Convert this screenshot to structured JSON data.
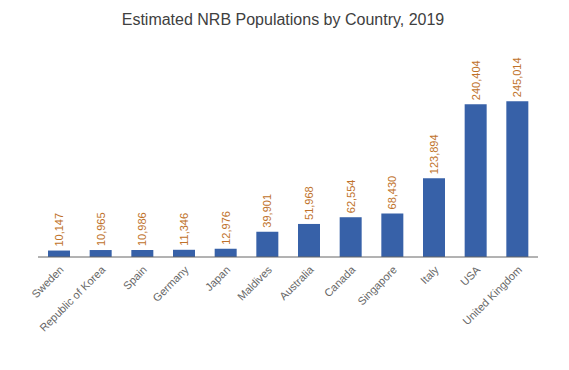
{
  "chart_data": {
    "type": "bar",
    "title": "Estimated NRB Populations by Country, 2019",
    "categories": [
      "Sweden",
      "Republic of Korea",
      "Spain",
      "Germany",
      "Japan",
      "Maldives",
      "Australia",
      "Canada",
      "Singapore",
      "Italy",
      "USA",
      "United Kingdom"
    ],
    "values": [
      10147,
      10965,
      10986,
      11346,
      12976,
      39901,
      51968,
      62554,
      68430,
      123894,
      240404,
      245014
    ],
    "value_labels": [
      "10,147",
      "10,965",
      "10,986",
      "11,346",
      "12,976",
      "39,901",
      "51,968",
      "62,554",
      "68,430",
      "123,894",
      "240,404",
      "245,014"
    ],
    "color": "#3761A8",
    "ylim": [
      0,
      338119.32
    ],
    "data_labels": true,
    "tick_labels": "x",
    "grid": false
  }
}
